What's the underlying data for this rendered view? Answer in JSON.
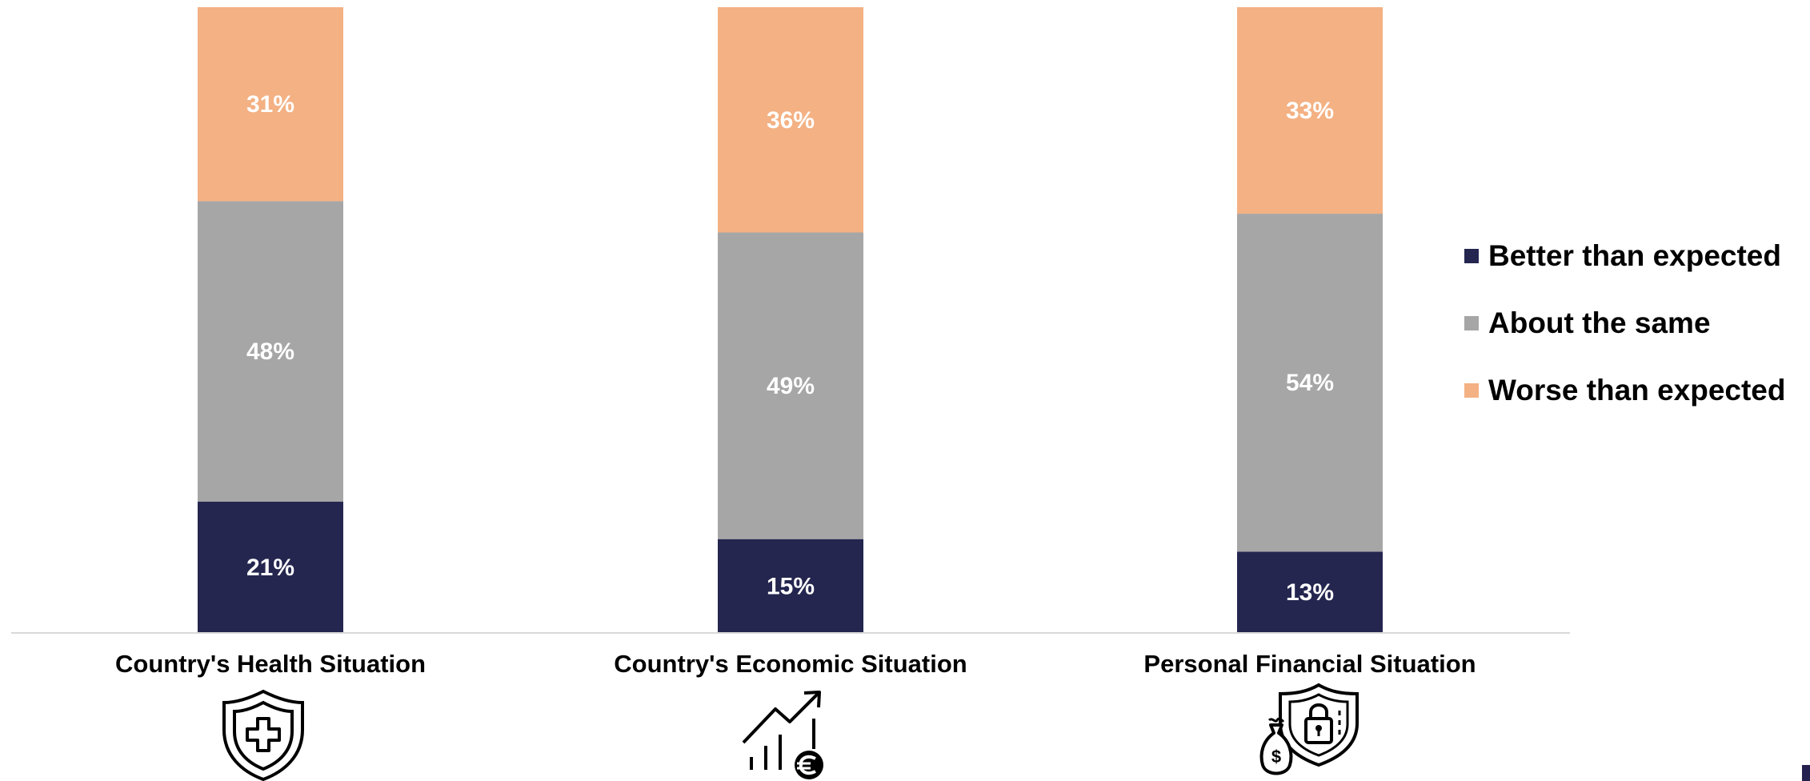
{
  "chart_data": {
    "type": "bar",
    "stacked": true,
    "categories": [
      "Country's Health Situation",
      "Country's Economic Situation",
      "Personal Financial Situation"
    ],
    "series": [
      {
        "name": "Better than expected",
        "values": [
          21,
          15,
          13
        ],
        "labels": [
          "21%",
          "15%",
          "13%"
        ],
        "color": "#24264f"
      },
      {
        "name": "About the same",
        "values": [
          48,
          49,
          54
        ],
        "labels": [
          "48%",
          "49%",
          "54%"
        ],
        "color": "#a6a6a6"
      },
      {
        "name": "Worse than expected",
        "values": [
          31,
          36,
          33
        ],
        "labels": [
          "31%",
          "36%",
          "33%"
        ],
        "color": "#f4b183"
      }
    ],
    "ylim": [
      0,
      100
    ],
    "legend_position": "right",
    "grid": false
  },
  "icons": [
    "shield-medical-icon",
    "growth-chart-euro-icon",
    "money-bag-security-icon"
  ]
}
